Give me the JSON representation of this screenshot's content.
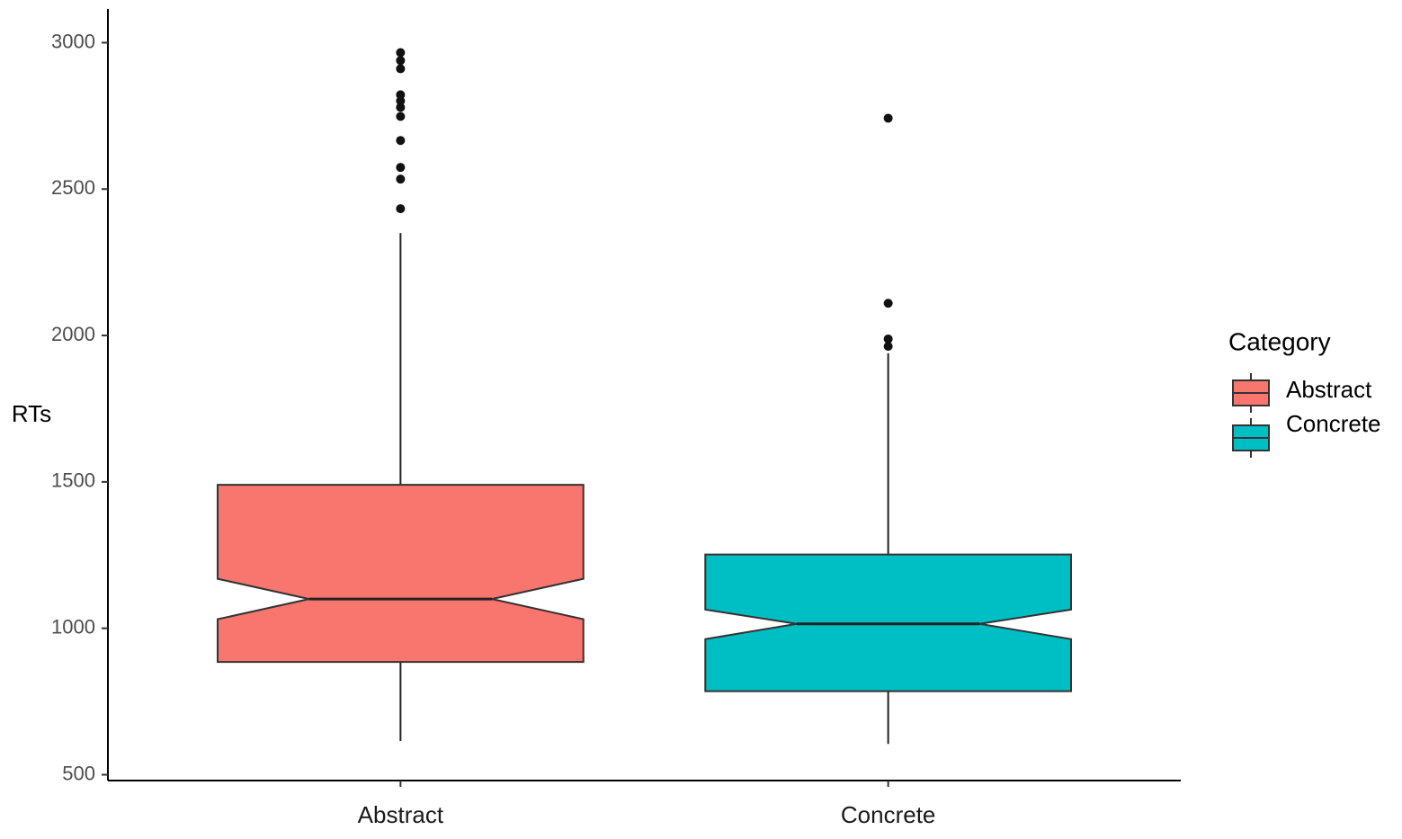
{
  "chart_data": {
    "type": "boxplot",
    "y_label": "RTs",
    "legend_title": "Category",
    "categories": [
      "Abstract",
      "Concrete"
    ],
    "series": [
      {
        "name": "Abstract",
        "color": "#f8766d",
        "whisker_low": 615,
        "q1": 885,
        "notch_low": 1031,
        "median": 1100,
        "notch_high": 1169,
        "q3": 1490,
        "whisker_high": 2350,
        "outliers": [
          2966,
          2939,
          2911,
          2822,
          2801,
          2779,
          2748,
          2666,
          2574,
          2534,
          2433
        ]
      },
      {
        "name": "Concrete",
        "color": "#00bfc4",
        "whisker_low": 605,
        "q1": 785,
        "notch_low": 963,
        "median": 1015,
        "notch_high": 1064,
        "q3": 1252,
        "whisker_high": 1939,
        "outliers": [
          2742,
          2110,
          1988,
          1963
        ]
      }
    ],
    "ylim": [
      480,
      3115
    ],
    "yticks": [
      500,
      1000,
      1500,
      2000,
      2500,
      3000
    ],
    "grid": false
  }
}
